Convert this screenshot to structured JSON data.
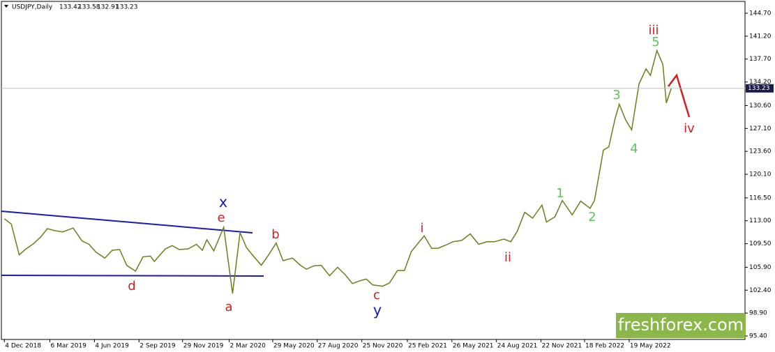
{
  "chart_data": {
    "type": "line",
    "title": "USDJPY,Daily",
    "ohlc": [
      133.42,
      133.58,
      132.91,
      133.23
    ],
    "watermark": "freshforex.com",
    "x": [
      "2018-12-04",
      "2018-12-18",
      "2019-01-03",
      "2019-01-15",
      "2019-02-01",
      "2019-02-15",
      "2019-03-01",
      "2019-03-15",
      "2019-04-01",
      "2019-04-22",
      "2019-05-10",
      "2019-05-24",
      "2019-06-07",
      "2019-06-25",
      "2019-07-10",
      "2019-07-25",
      "2019-08-08",
      "2019-08-26",
      "2019-09-10",
      "2019-09-25",
      "2019-10-03",
      "2019-10-25",
      "2019-11-08",
      "2019-11-22",
      "2019-12-10",
      "2019-12-27",
      "2020-01-08",
      "2020-01-17",
      "2020-01-31",
      "2020-02-20",
      "2020-03-09",
      "2020-03-24",
      "2020-04-06",
      "2020-04-20",
      "2020-05-06",
      "2020-05-20",
      "2020-06-05",
      "2020-06-19",
      "2020-07-08",
      "2020-07-24",
      "2020-08-05",
      "2020-08-20",
      "2020-09-04",
      "2020-09-21",
      "2020-10-07",
      "2020-10-22",
      "2020-11-06",
      "2020-11-20",
      "2020-12-04",
      "2020-12-17",
      "2021-01-06",
      "2021-01-20",
      "2021-02-05",
      "2021-02-19",
      "2021-03-05",
      "2021-03-31",
      "2021-04-15",
      "2021-04-28",
      "2021-05-14",
      "2021-05-28",
      "2021-06-15",
      "2021-07-02",
      "2021-07-19",
      "2021-08-05",
      "2021-08-20",
      "2021-09-08",
      "2021-09-22",
      "2021-10-05",
      "2021-10-20",
      "2021-11-05",
      "2021-11-24",
      "2021-12-03",
      "2021-12-20",
      "2022-01-04",
      "2022-01-24",
      "2022-02-10",
      "2022-03-01",
      "2022-03-10",
      "2022-03-28",
      "2022-04-08",
      "2022-04-20",
      "2022-04-29",
      "2022-05-12",
      "2022-05-24",
      "2022-06-08",
      "2022-06-22",
      "2022-07-01",
      "2022-07-14",
      "2022-07-26",
      "2022-08-02",
      "2022-08-12"
    ],
    "series": [
      {
        "name": "USDJPY",
        "color": "#6b7d1c",
        "values": [
          113.3,
          112.5,
          107.8,
          108.6,
          109.5,
          110.5,
          111.8,
          111.5,
          111.3,
          111.9,
          109.9,
          109.4,
          108.2,
          107.3,
          108.5,
          108.6,
          106.2,
          105.3,
          107.5,
          107.6,
          106.8,
          108.7,
          109.2,
          108.6,
          108.7,
          109.4,
          108.5,
          110.1,
          108.4,
          112.0,
          101.9,
          111.2,
          108.9,
          107.6,
          106.2,
          107.7,
          109.6,
          106.9,
          107.3,
          106.2,
          105.6,
          106.1,
          106.2,
          104.6,
          105.9,
          104.8,
          103.4,
          103.8,
          104.1,
          103.2,
          103.0,
          103.5,
          105.4,
          105.4,
          108.3,
          110.7,
          108.8,
          108.8,
          109.3,
          109.8,
          110.0,
          111.0,
          109.4,
          109.8,
          109.8,
          110.2,
          109.8,
          111.4,
          114.3,
          113.4,
          115.4,
          112.8,
          113.6,
          116.1,
          113.9,
          116.0,
          114.9,
          116.1,
          123.8,
          124.3,
          128.4,
          130.8,
          128.4,
          126.9,
          133.9,
          136.2,
          135.2,
          139.0,
          136.9,
          131.0,
          133.23
        ]
      }
    ],
    "xlim": [
      "2018-11-28",
      "2023-01-08"
    ],
    "xticks": [
      {
        "value": "2018-12-04",
        "label": "4 Dec 2018"
      },
      {
        "value": "2019-03-06",
        "label": "6 Mar 2019"
      },
      {
        "value": "2019-06-04",
        "label": "4 Jun 2019"
      },
      {
        "value": "2019-09-02",
        "label": "2 Sep 2019"
      },
      {
        "value": "2019-11-29",
        "label": "29 Nov 2019"
      },
      {
        "value": "2020-03-02",
        "label": "2 Mar 2020"
      },
      {
        "value": "2020-05-29",
        "label": "29 May 2020"
      },
      {
        "value": "2020-08-27",
        "label": "27 Aug 2020"
      },
      {
        "value": "2020-11-25",
        "label": "25 Nov 2020"
      },
      {
        "value": "2021-02-25",
        "label": "25 Feb 2021"
      },
      {
        "value": "2021-05-26",
        "label": "26 May 2021"
      },
      {
        "value": "2021-08-24",
        "label": "24 Aug 2021"
      },
      {
        "value": "2021-11-22",
        "label": "22 Nov 2021"
      },
      {
        "value": "2022-02-18",
        "label": "18 Feb 2022"
      },
      {
        "value": "2022-05-19",
        "label": "19 May 2022"
      }
    ],
    "ylim": [
      94.87,
      146.51
    ],
    "yticks": [
      {
        "value": 144.7,
        "label": "144.70"
      },
      {
        "value": 141.2,
        "label": "141.20"
      },
      {
        "value": 137.7,
        "label": "137.70"
      },
      {
        "value": 134.2,
        "label": "134.20"
      },
      {
        "value": 130.6,
        "label": "130.60"
      },
      {
        "value": 127.1,
        "label": "127.10"
      },
      {
        "value": 123.6,
        "label": "123.60"
      },
      {
        "value": 120.1,
        "label": "120.10"
      },
      {
        "value": 116.5,
        "label": "116.50"
      },
      {
        "value": 113.0,
        "label": "113.00"
      },
      {
        "value": 109.5,
        "label": "109.50"
      },
      {
        "value": 105.9,
        "label": "105.90"
      },
      {
        "value": 102.4,
        "label": "102.40"
      },
      {
        "value": 98.9,
        "label": "98.90"
      },
      {
        "value": 95.4,
        "label": "95.40"
      }
    ],
    "annotations": [
      {
        "text": "iii",
        "color": "#d21f1f"
      },
      {
        "text": "5",
        "color": "#5cc45c"
      },
      {
        "text": "3",
        "color": "#5cc45c"
      },
      {
        "text": "4",
        "color": "#5cc45c"
      },
      {
        "text": "iv",
        "color": "#d21f1f"
      },
      {
        "text": "1",
        "color": "#5cc45c"
      },
      {
        "text": "2",
        "color": "#5cc45c"
      },
      {
        "text": "ii",
        "color": "#d21f1f"
      },
      {
        "text": "i",
        "color": "#d21f1f"
      },
      {
        "text": "c",
        "color": "#d21f1f"
      },
      {
        "text": "y",
        "color": "#1a1ab8"
      },
      {
        "text": "b",
        "color": "#d21f1f"
      },
      {
        "text": "x",
        "color": "#1a1ab8"
      },
      {
        "text": "e",
        "color": "#d21f1f"
      },
      {
        "text": "a",
        "color": "#d21f1f"
      },
      {
        "text": "d",
        "color": "#d21f1f"
      }
    ]
  }
}
